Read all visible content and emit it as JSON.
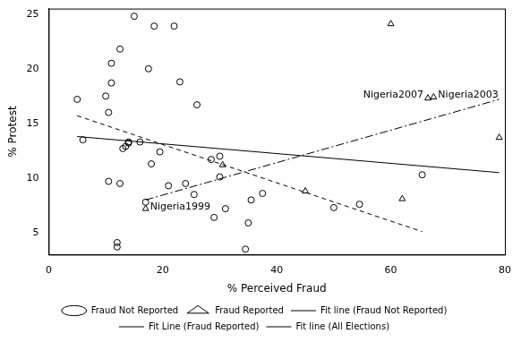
{
  "chart_data": {
    "type": "scatter",
    "x_label": "% Perceived Fraud",
    "y_label": "% Protest",
    "xlim": [
      0,
      80
    ],
    "xticks": [
      0,
      20,
      40,
      60,
      80
    ],
    "ylim": [
      3,
      25.5
    ],
    "yticks": [
      5,
      10,
      15,
      20,
      25
    ],
    "grid": false,
    "legend": "bottom",
    "series": [
      {
        "name": "Fraud Not Reported",
        "type": "scatter",
        "marker": "circle",
        "color": "#000000",
        "x": [
          5,
          6,
          10,
          10.5,
          10.5,
          11,
          11,
          12,
          12,
          12.5,
          12.5,
          13,
          13.5,
          14,
          14,
          15,
          16,
          17,
          17.5,
          18,
          18.5,
          19.5,
          21,
          22,
          23,
          24,
          25.5,
          26,
          28.5,
          29,
          30,
          30,
          31,
          34.5,
          35,
          35.5,
          37.5,
          50,
          54.5,
          65.5
        ],
        "values": [
          17.2,
          13.5,
          17.5,
          16,
          9.7,
          20.5,
          18.7,
          4.1,
          3.7,
          21.8,
          9.5,
          12.7,
          12.9,
          13.2,
          13.3,
          24.8,
          13.3,
          7.8,
          20,
          11.3,
          23.9,
          12.4,
          9.3,
          23.9,
          18.8,
          9.5,
          8.5,
          16.7,
          11.7,
          6.4,
          12,
          10.1,
          7.2,
          3.5,
          5.9,
          8,
          8.6,
          7.3,
          7.6,
          10.3
        ]
      },
      {
        "name": "Fraud Reported",
        "type": "scatter",
        "marker": "triangle",
        "color": "#000000",
        "x": [
          17,
          30.5,
          45,
          60,
          62,
          66.5,
          67.5,
          79
        ],
        "values": [
          7.2,
          11.2,
          8.8,
          24.1,
          8.1,
          17.3,
          17.4,
          13.7
        ]
      },
      {
        "name": "Fit line (Fraud Not Reported)",
        "type": "line",
        "line_style": "dashed",
        "color": "#000000",
        "x": [
          5,
          65.5
        ],
        "values": [
          15.7,
          5.1
        ]
      },
      {
        "name": "Fit Line (Fraud Reported)",
        "type": "line",
        "line_style": "dashdot",
        "color": "#000000",
        "x": [
          17,
          79
        ],
        "values": [
          8,
          17.2
        ]
      },
      {
        "name": "Fit line (All Elections)",
        "type": "line",
        "line_style": "solid",
        "color": "#000000",
        "x": [
          5,
          79
        ],
        "values": [
          13.8,
          10.5
        ]
      }
    ],
    "annotations": [
      {
        "text": "Nigeria1999",
        "x": 17,
        "y": 7.2
      },
      {
        "text": "Nigeria2007",
        "x": 66.5,
        "y": 17.3
      },
      {
        "text": "Nigeria2003",
        "x": 67.5,
        "y": 17.4
      }
    ]
  }
}
